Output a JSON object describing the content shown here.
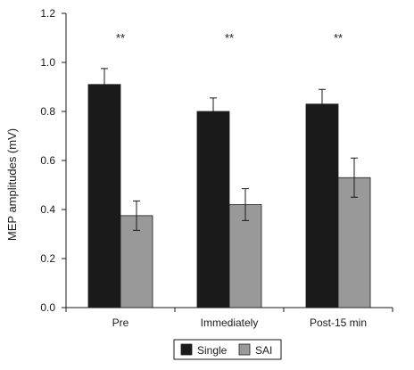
{
  "chart_data": {
    "type": "bar",
    "title": "",
    "xlabel": "",
    "ylabel": "MEP amplitudes (mV)",
    "ylim": [
      0,
      1.2
    ],
    "yticks": [
      "0.0",
      "0.2",
      "0.4",
      "0.6",
      "0.8",
      "1.0",
      "1.2"
    ],
    "categories": [
      "Pre",
      "Immediately",
      "Post-15 min"
    ],
    "series": [
      {
        "name": "Single",
        "color": "#1a1a1a",
        "values": [
          0.91,
          0.8,
          0.83
        ],
        "errors": [
          0.065,
          0.055,
          0.06
        ]
      },
      {
        "name": "SAI",
        "color": "#999999",
        "values": [
          0.375,
          0.42,
          0.53
        ],
        "errors": [
          0.06,
          0.065,
          0.08
        ]
      }
    ],
    "annotations": [
      "**",
      "**",
      "**"
    ],
    "legend_position": "bottom-center",
    "grid": false
  }
}
